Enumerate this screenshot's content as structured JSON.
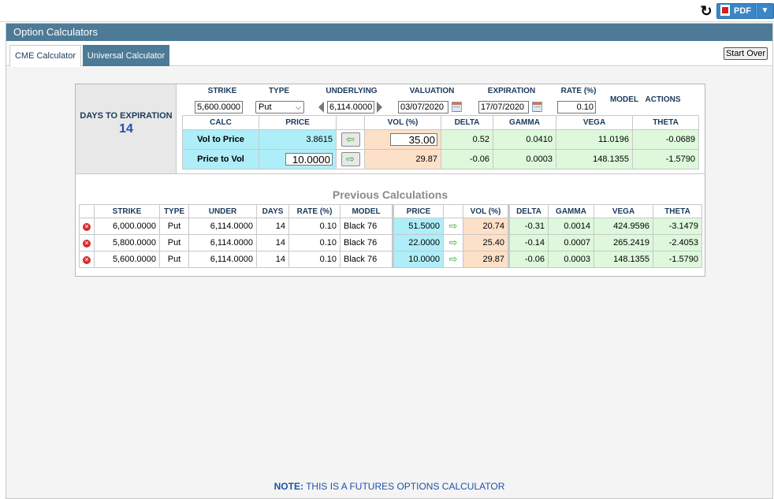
{
  "toolbar": {
    "refresh_icon": "refresh-icon",
    "pdf_label": "PDF",
    "dropdown_icon": "chevron-down-icon"
  },
  "panel": {
    "title": "Option Calculators",
    "tabs": [
      "CME Calculator",
      "Universal Calculator"
    ],
    "active_tab": "Universal Calculator",
    "start_over": "Start Over"
  },
  "calculator": {
    "days_label": "DAYS TO EXPIRATION",
    "days_value": "14",
    "headers": {
      "strike": "STRIKE",
      "type": "TYPE",
      "underlying": "UNDERLYING",
      "valuation": "VALUATION",
      "expiration": "EXPIRATION",
      "rate": "RATE (%)",
      "model": "MODEL",
      "actions": "ACTIONS"
    },
    "inputs": {
      "strike": "5,600.0000",
      "type": "Put",
      "underlying": "6,114.0000",
      "valuation": "03/07/2020",
      "expiration": "17/07/2020",
      "rate": "0.10"
    },
    "grid_headers": [
      "CALC",
      "PRICE",
      "VOL (%)",
      "DELTA",
      "GAMMA",
      "VEGA",
      "THETA"
    ],
    "rows": [
      {
        "calc": "Vol to Price",
        "price": "3.8615",
        "arrow": "⇦",
        "vol": "35.00",
        "delta": "0.52",
        "gamma": "0.0410",
        "vega": "11.0196",
        "theta": "-0.0689"
      },
      {
        "calc": "Price to Vol",
        "price": "10.0000",
        "arrow": "⇨",
        "vol": "29.87",
        "delta": "-0.06",
        "gamma": "0.0003",
        "vega": "148.1355",
        "theta": "-1.5790"
      }
    ]
  },
  "previous": {
    "title": "Previous Calculations",
    "headers": [
      "STRIKE",
      "TYPE",
      "UNDER",
      "DAYS",
      "RATE (%)",
      "MODEL",
      "PRICE",
      "VOL (%)",
      "DELTA",
      "GAMMA",
      "VEGA",
      "THETA"
    ],
    "rows": [
      {
        "strike": "6,000.0000",
        "type": "Put",
        "under": "6,114.0000",
        "days": "14",
        "rate": "0.10",
        "model": "Black 76",
        "price": "51.5000",
        "vol": "20.74",
        "delta": "-0.31",
        "gamma": "0.0014",
        "vega": "424.9596",
        "theta": "-3.1479"
      },
      {
        "strike": "5,800.0000",
        "type": "Put",
        "under": "6,114.0000",
        "days": "14",
        "rate": "0.10",
        "model": "Black 76",
        "price": "22.0000",
        "vol": "25.40",
        "delta": "-0.14",
        "gamma": "0.0007",
        "vega": "265.2419",
        "theta": "-2.4053"
      },
      {
        "strike": "5,600.0000",
        "type": "Put",
        "under": "6,114.0000",
        "days": "14",
        "rate": "0.10",
        "model": "Black 76",
        "price": "10.0000",
        "vol": "29.87",
        "delta": "-0.06",
        "gamma": "0.0003",
        "vega": "148.1355",
        "theta": "-1.5790"
      }
    ]
  },
  "note": {
    "label": "NOTE:",
    "text": "THIS IS A FUTURES OPTIONS CALCULATOR"
  }
}
